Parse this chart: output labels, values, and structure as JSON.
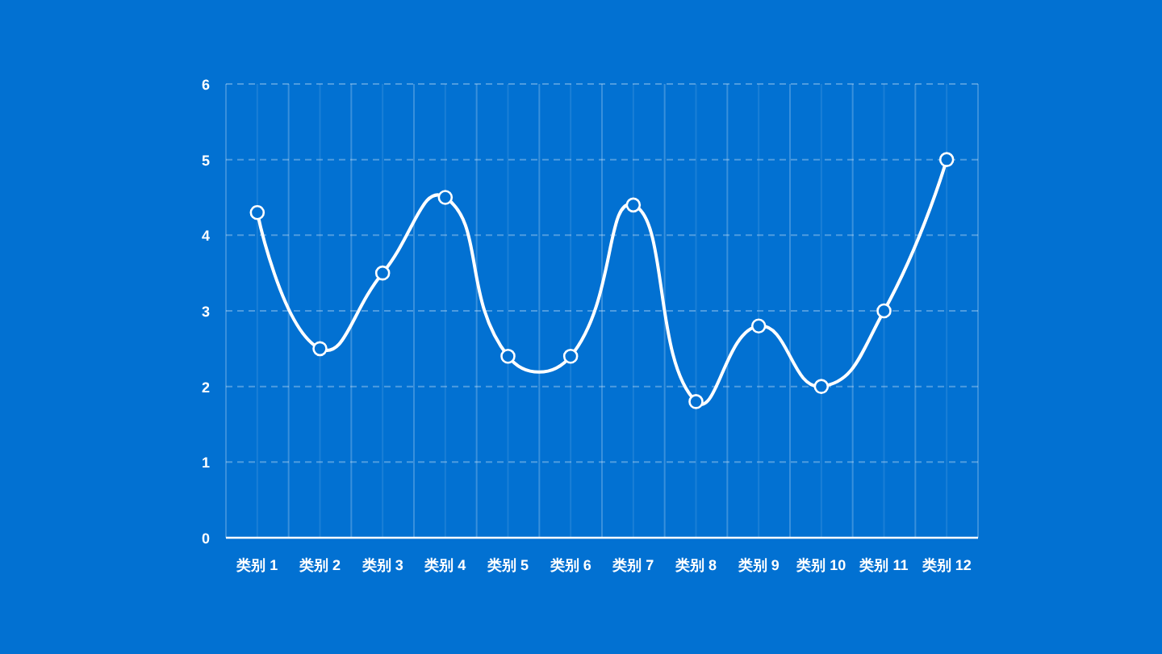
{
  "chart_data": {
    "type": "line",
    "categories": [
      "类别 1",
      "类别 2",
      "类别 3",
      "类别 4",
      "类别 5",
      "类别 6",
      "类别 7",
      "类别 8",
      "类别 9",
      "类别 10",
      "类别 11",
      "类别 12"
    ],
    "series": [
      {
        "color": "#ffffff",
        "values": [
          4.3,
          2.5,
          3.5,
          4.5,
          2.4,
          2.4,
          4.4,
          1.8,
          2.8,
          2.0,
          3.0,
          5.0
        ]
      }
    ],
    "ylim": [
      0,
      6
    ],
    "yticks": [
      0,
      1,
      2,
      3,
      4,
      5,
      6
    ],
    "grid": true,
    "marker": "circle",
    "line_style": "solid"
  }
}
